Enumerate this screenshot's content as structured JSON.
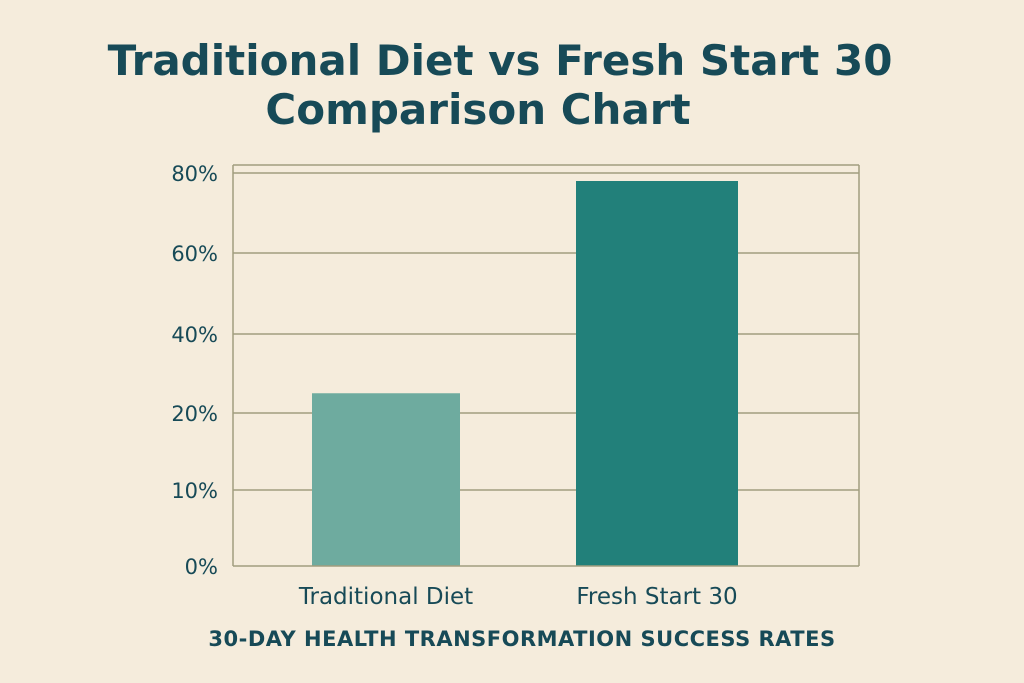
{
  "chart_data": {
    "type": "bar",
    "title_lines": [
      "Traditional Diet vs Fresh Start 30",
      "Comparison Chart"
    ],
    "xlabel": "30-DAY HEALTH TRANSFORMATION SUCCESS RATES",
    "ylabel": "",
    "categories": [
      "Traditional Diet",
      "Fresh Start 30"
    ],
    "values": [
      25,
      78
    ],
    "y_ticks": [
      {
        "value": 0,
        "label": "0%"
      },
      {
        "value": 10,
        "label": "10%"
      },
      {
        "value": 20,
        "label": "20%"
      },
      {
        "value": 40,
        "label": "40%"
      },
      {
        "value": 60,
        "label": "60%"
      },
      {
        "value": 80,
        "label": "80%"
      }
    ],
    "ylim": [
      0,
      80
    ],
    "grid": true,
    "bar_colors": [
      "#6eab9f",
      "#22807a"
    ],
    "axis_color": "#a29d7e",
    "text_color": "#174a57",
    "background": "#f5ecdc"
  }
}
